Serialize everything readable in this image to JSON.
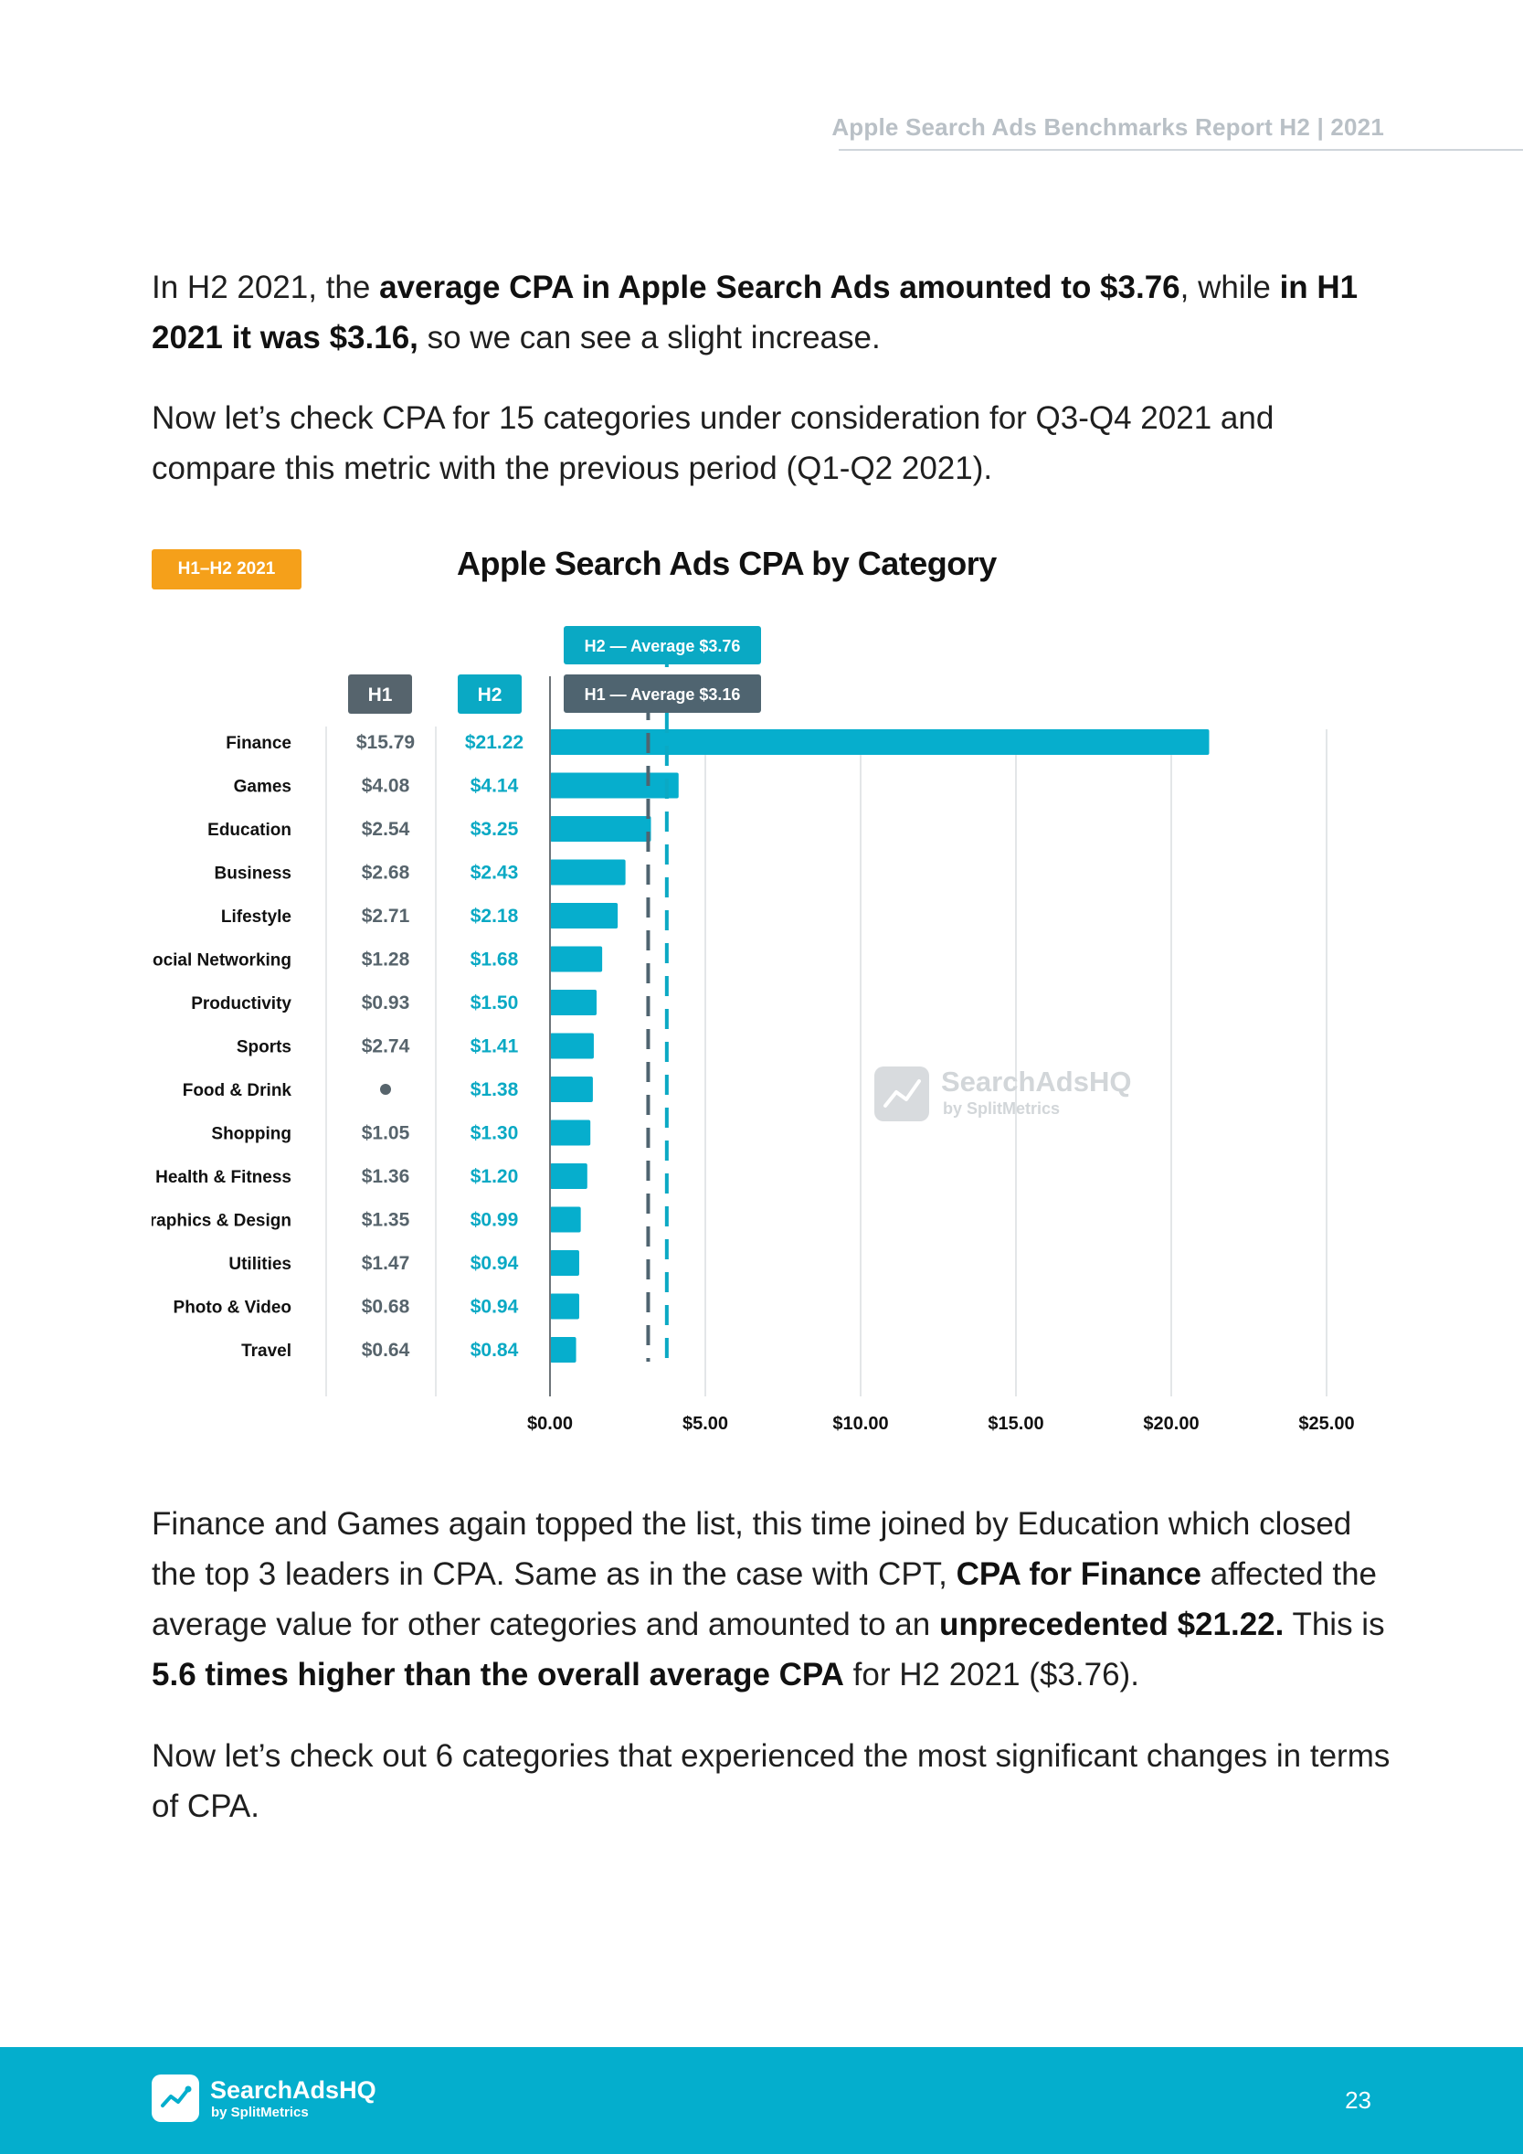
{
  "header": {
    "title": "Apple Search Ads Benchmarks Report H2 | 2021"
  },
  "paragraphs": {
    "p1": [
      {
        "t": "In H2 2021, the ",
        "b": false
      },
      {
        "t": "average CPA in Apple Search Ads amounted to $3.76",
        "b": true
      },
      {
        "t": ", while ",
        "b": false
      },
      {
        "t": "in H1 2021 it was $3.16,",
        "b": true
      },
      {
        "t": " so we can see a slight increase.",
        "b": false
      }
    ],
    "p2": [
      {
        "t": "Now let’s check CPA for 15 categories under consideration for Q3-Q4 2021 and compare this metric with the previous period (Q1-Q2 2021).",
        "b": false
      }
    ],
    "p3": [
      {
        "t": "Finance and Games again topped the list, this time joined by Education which closed the top 3 leaders in CPA. Same as in the case with CPT, ",
        "b": false
      },
      {
        "t": "CPA for Finance",
        "b": true
      },
      {
        "t": " affected the average value for other categories and amounted to an ",
        "b": false
      },
      {
        "t": "unprecedented $21.22.",
        "b": true
      },
      {
        "t": " This is ",
        "b": false
      },
      {
        "t": "5.6 times higher than the overall average CPA",
        "b": true
      },
      {
        "t": " for H2 2021 ($3.76).",
        "b": false
      }
    ],
    "p4": [
      {
        "t": "Now let’s check out 6 categories that experienced the most significant changes in terms of CPA.",
        "b": false
      }
    ]
  },
  "chart_tag": "H1–H2 2021",
  "chart_data": {
    "type": "bar",
    "orientation": "horizontal",
    "title": "Apple Search Ads CPA by Category",
    "column_headers": [
      "H1",
      "H2"
    ],
    "categories": [
      "Finance",
      "Games",
      "Education",
      "Business",
      "Lifestyle",
      "Social Networking",
      "Productivity",
      "Sports",
      "Food & Drink",
      "Shopping",
      "Health & Fitness",
      "Graphics & Design",
      "Utilities",
      "Photo & Video",
      "Travel"
    ],
    "h1_labels": [
      "$15.79",
      "$4.08",
      "$2.54",
      "$2.68",
      "$2.71",
      "$1.28",
      "$0.93",
      "$2.74",
      "•",
      "$1.05",
      "$1.36",
      "$1.35",
      "$1.47",
      "$0.68",
      "$0.64"
    ],
    "h2_labels": [
      "$21.22",
      "$4.14",
      "$3.25",
      "$2.43",
      "$2.18",
      "$1.68",
      "$1.50",
      "$1.41",
      "$1.38",
      "$1.30",
      "$1.20",
      "$0.99",
      "$0.94",
      "$0.94",
      "$0.84"
    ],
    "h2_values": [
      21.22,
      4.14,
      3.25,
      2.43,
      2.18,
      1.68,
      1.5,
      1.41,
      1.38,
      1.3,
      1.2,
      0.99,
      0.94,
      0.94,
      0.84
    ],
    "xlim": [
      0,
      25
    ],
    "x_ticks": [
      0,
      5,
      10,
      15,
      20,
      25
    ],
    "x_tick_labels": [
      "$0.00",
      "$5.00",
      "$10.00",
      "$15.00",
      "$20.00",
      "$25.00"
    ],
    "grid": true,
    "reference_lines": [
      {
        "label": "H2 — Average $3.76",
        "value": 3.76,
        "color": "#0aa9c4"
      },
      {
        "label": "H1 — Average $3.16",
        "value": 3.16,
        "color": "#4f6470"
      }
    ],
    "colors": {
      "bar": "#06aecd",
      "h1": "#57646c",
      "h2": "#0aa9c4",
      "h1_badge": "#56646d",
      "h2_badge": "#0aa9c4"
    }
  },
  "watermark": {
    "brand": "SearchAdsHQ",
    "by": "by SplitMetrics"
  },
  "footer": {
    "brand": "SearchAdsHQ",
    "by": "by SplitMetrics",
    "page_number": "23"
  }
}
